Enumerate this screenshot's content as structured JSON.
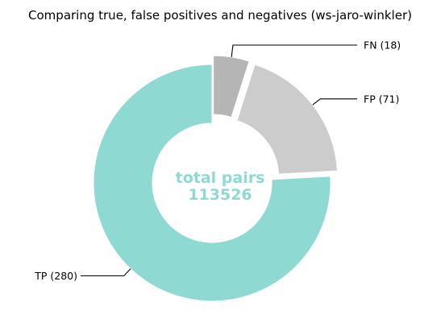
{
  "chart_data": {
    "type": "pie",
    "title": "Comparing true, false positives and negatives (ws-jaro-winkler)",
    "center_label": {
      "line1": "total pairs",
      "line2": "113526",
      "color": "#8fd9d3"
    },
    "slices": [
      {
        "name": "FN",
        "value": 18,
        "label": "FN (18)",
        "color": "#b5b5b5",
        "exploded": true
      },
      {
        "name": "FP",
        "value": 71,
        "label": "FP (71)",
        "color": "#cccccc",
        "exploded": true
      },
      {
        "name": "TP",
        "value": 280,
        "label": "TP (280)",
        "color": "#8fd9d3",
        "exploded": false
      }
    ],
    "start_angle_deg": 90,
    "direction": "clockwise",
    "donut": true
  }
}
